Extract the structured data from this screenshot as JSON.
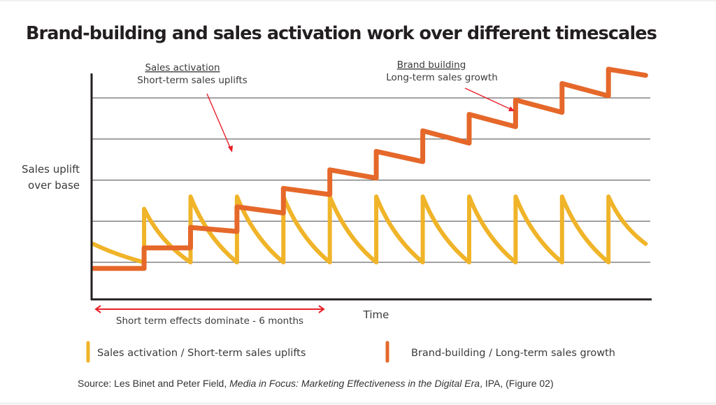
{
  "page": {
    "title": "Brand-building and sales activation work over different timescales",
    "source": {
      "prefix": "Source: Les Binet and Peter Field, ",
      "title_italic": "Media in Focus: Marketing Effectiveness in the Digital Era",
      "suffix": ", IPA, (Figure 02)"
    }
  },
  "colors": {
    "sales_activation": "#f0b429",
    "brand_building": "#e5682a",
    "annotation_arrow": "#e8202a",
    "gridline": "#6b6b6b",
    "axis": "#231f20"
  },
  "chart_data": {
    "type": "line",
    "title": "Brand-building and sales activation work over different timescales",
    "xlabel": "Time",
    "ylabel": "Sales uplift over base",
    "ylabel_lines": [
      "Sales uplift",
      "over base"
    ],
    "xlim": [
      0,
      12
    ],
    "ylim": [
      0,
      5.7
    ],
    "grid": true,
    "gridlines_y": [
      1,
      2,
      3,
      4,
      5
    ],
    "x_ticks": [],
    "y_ticks": [],
    "legend": {
      "placement": "bottom",
      "entries": [
        {
          "name": "Sales activation / Short-term sales uplifts",
          "color": "#f0b429"
        },
        {
          "name": "Brand-building / Long-term sales growth",
          "color": "#e5682a"
        }
      ]
    },
    "series": [
      {
        "name": "Sales activation / Short-term sales uplifts",
        "color": "#f0b429",
        "shape": "sawtooth-decay",
        "start_value": 1.45,
        "trough_value": 1.0,
        "spike_times": [
          1.1,
          2.1,
          3.1,
          4.1,
          5.1,
          6.1,
          7.1,
          8.1,
          9.1,
          10.1,
          11.1
        ],
        "peak_values": [
          2.3,
          2.6,
          2.6,
          2.6,
          2.6,
          2.6,
          2.6,
          2.6,
          2.6,
          2.6,
          2.6
        ],
        "end_time": 11.9,
        "end_value": 1.45
      },
      {
        "name": "Brand-building / Long-term sales growth",
        "color": "#e5682a",
        "shape": "rising-staircase",
        "points": [
          {
            "t": 0.0,
            "v": 0.85
          },
          {
            "t": 1.1,
            "v": 0.85
          },
          {
            "t": 1.1,
            "v": 1.35
          },
          {
            "t": 2.1,
            "v": 1.35
          },
          {
            "t": 2.1,
            "v": 1.85
          },
          {
            "t": 3.1,
            "v": 1.75
          },
          {
            "t": 3.1,
            "v": 2.35
          },
          {
            "t": 4.1,
            "v": 2.2
          },
          {
            "t": 4.1,
            "v": 2.8
          },
          {
            "t": 5.1,
            "v": 2.65
          },
          {
            "t": 5.1,
            "v": 3.25
          },
          {
            "t": 6.1,
            "v": 3.05
          },
          {
            "t": 6.1,
            "v": 3.7
          },
          {
            "t": 7.1,
            "v": 3.45
          },
          {
            "t": 7.1,
            "v": 4.2
          },
          {
            "t": 8.1,
            "v": 3.9
          },
          {
            "t": 8.1,
            "v": 4.6
          },
          {
            "t": 9.1,
            "v": 4.3
          },
          {
            "t": 9.1,
            "v": 4.95
          },
          {
            "t": 10.1,
            "v": 4.65
          },
          {
            "t": 10.1,
            "v": 5.35
          },
          {
            "t": 11.1,
            "v": 5.05
          },
          {
            "t": 11.1,
            "v": 5.7
          },
          {
            "t": 11.9,
            "v": 5.55
          }
        ]
      }
    ],
    "annotations": [
      {
        "heading": "Sales activation",
        "text": "Short-term sales uplifts",
        "points_to": "sales-activation-spike"
      },
      {
        "heading": "Brand building",
        "text": "Long-term sales growth",
        "points_to": "brand-building-line"
      },
      {
        "text": "Short term effects dominate - 6 months",
        "type": "double-arrow-span",
        "span": [
          0,
          5.0
        ]
      }
    ]
  }
}
